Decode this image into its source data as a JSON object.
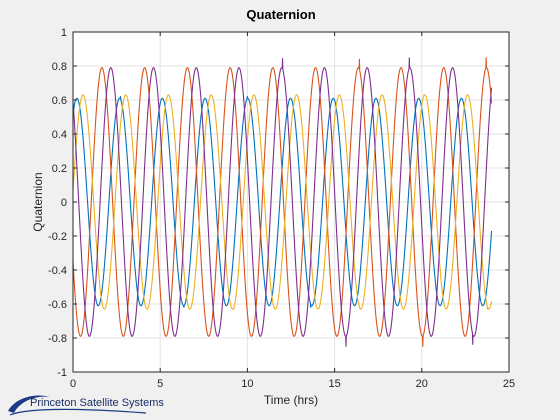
{
  "chart_data": {
    "type": "line",
    "title": "Quaternion",
    "xlabel": "Time (hrs)",
    "ylabel": "Quaternion",
    "xlim": [
      0,
      25
    ],
    "ylim": [
      -1,
      1
    ],
    "xticks": [
      "0",
      "5",
      "10",
      "15",
      "20",
      "25"
    ],
    "yticks": [
      "-1",
      "-0.8",
      "-0.6",
      "-0.4",
      "-0.2",
      "0",
      "0.2",
      "0.4",
      "0.6",
      "0.8",
      "1"
    ],
    "grid": true,
    "x_range_of_data": [
      0,
      24
    ],
    "series": [
      {
        "color": "#0072bd",
        "amplitude": 0.61,
        "period_hrs": 2.45,
        "phase_rad": 1.0,
        "min": -0.62,
        "max": 0.62
      },
      {
        "color": "#d95319",
        "amplitude": 0.79,
        "period_hrs": 2.45,
        "phase_rad": 3.6,
        "min": -0.85,
        "max": 0.86
      },
      {
        "color": "#edb120",
        "amplitude": 0.63,
        "period_hrs": 2.45,
        "phase_rad": 0.1,
        "min": -0.63,
        "max": 0.63
      },
      {
        "color": "#7e2f8e",
        "amplitude": 0.79,
        "period_hrs": 2.45,
        "phase_rad": 2.3,
        "min": -0.86,
        "max": 0.85
      }
    ]
  },
  "branding": {
    "logo_text": "Princeton Satellite Systems"
  }
}
